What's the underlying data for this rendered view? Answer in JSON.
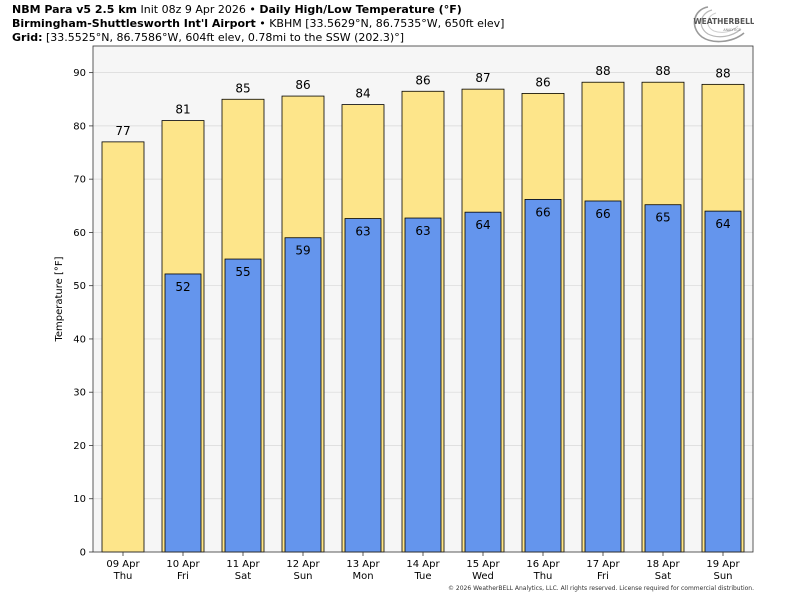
{
  "header": {
    "line1_model": "NBM Para v5 2.5 km",
    "line1_init": "Init 08z 9 Apr 2026",
    "line1_sep": "•",
    "line1_product": "Daily High/Low Temperature (°F)",
    "line2_station": "Birmingham-Shuttlesworth Int'l Airport",
    "line2_sep": "•",
    "line2_details": "KBHM [33.5629°N, 86.7535°W, 650ft elev]",
    "line3_label": "Grid:",
    "line3_details": "[33.5525°N, 86.7586°W, 604ft elev, 0.78mi to the SSW (202.3)°]"
  },
  "logo": {
    "text_main": "WEATHERBELL",
    "text_sub": "ANALYTICS"
  },
  "copyright": "© 2026 WeatherBELL Analytics, LLC. All rights reserved. License required for commercial distribution.",
  "colors": {
    "high_bar": "#fde58a",
    "low_bar": "#6495ed",
    "plot_bg": "#f6f6f6",
    "grid": "#d8d8d8"
  },
  "chart_data": {
    "type": "bar",
    "title": "Daily High/Low Temperature (°F)",
    "xlabel": "",
    "ylabel": "Temperature [°F]",
    "ylim": [
      0,
      95
    ],
    "yticks": [
      0,
      10,
      20,
      30,
      40,
      50,
      60,
      70,
      80,
      90
    ],
    "grid": true,
    "categories": [
      "09 Apr",
      "10 Apr",
      "11 Apr",
      "12 Apr",
      "13 Apr",
      "14 Apr",
      "15 Apr",
      "16 Apr",
      "17 Apr",
      "18 Apr",
      "19 Apr"
    ],
    "weekdays": [
      "Thu",
      "Fri",
      "Sat",
      "Sun",
      "Mon",
      "Tue",
      "Wed",
      "Thu",
      "Fri",
      "Sat",
      "Sun"
    ],
    "series": [
      {
        "name": "High",
        "values": [
          77,
          81,
          85,
          86,
          84,
          86,
          87,
          86,
          88,
          88,
          88
        ],
        "plot_values": [
          77,
          81,
          85,
          85.6,
          84,
          86.5,
          86.9,
          86.1,
          88.2,
          88.2,
          87.8
        ]
      },
      {
        "name": "Low",
        "values": [
          null,
          52,
          55,
          59,
          63,
          63,
          64,
          66,
          66,
          65,
          64
        ],
        "plot_values": [
          null,
          52.2,
          55,
          59,
          62.6,
          62.7,
          63.8,
          66.2,
          65.9,
          65.2,
          64
        ]
      }
    ]
  }
}
